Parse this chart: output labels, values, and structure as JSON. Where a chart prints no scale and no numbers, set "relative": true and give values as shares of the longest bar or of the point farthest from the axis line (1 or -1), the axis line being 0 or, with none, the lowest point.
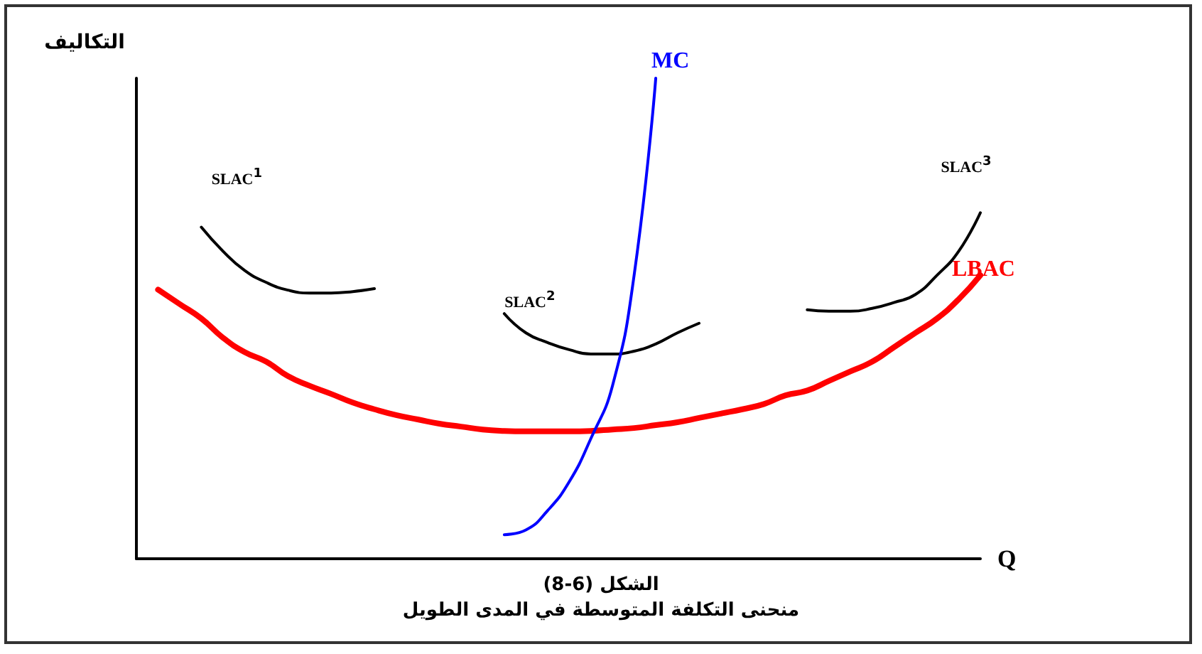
{
  "chart_data": {
    "type": "line",
    "relative": true,
    "ylabel": "التكاليف",
    "xlabel": "Q",
    "legend": false,
    "grid": false,
    "marker": "none",
    "annotations": [
      "الشكل (6-8)",
      "منحنى التكلفة المتوسطة في المدى الطويل"
    ],
    "categories": [
      null,
      null,
      null,
      null,
      null,
      null,
      null,
      null,
      null,
      null,
      null,
      null,
      null,
      null,
      null,
      null,
      null,
      null,
      null,
      null,
      null,
      null,
      null,
      null,
      null,
      null,
      null,
      null,
      null,
      null,
      null,
      null,
      null,
      null,
      null,
      null,
      null,
      null,
      null,
      null
    ],
    "series": [
      {
        "name": "SLAC$^{1}$",
        "color": "#000000",
        "values": [
          null,
          null,
          null,
          0.69,
          0.64,
          0.6,
          0.575,
          0.559,
          0.553,
          0.553,
          0.556,
          0.562,
          null,
          null,
          null,
          null,
          null,
          null,
          null,
          null,
          null,
          null,
          null,
          null,
          null,
          null,
          null,
          null,
          null,
          null,
          null,
          null,
          null,
          null,
          null,
          null,
          null,
          null,
          null,
          null
        ]
      },
      {
        "name": "SLAC$^{2}$",
        "color": "#000000",
        "values": [
          null,
          null,
          null,
          null,
          null,
          null,
          null,
          null,
          null,
          null,
          null,
          null,
          null,
          null,
          null,
          null,
          null,
          0.51,
          0.47,
          0.45,
          0.435,
          0.426,
          0.426,
          0.432,
          0.447,
          0.47,
          0.49,
          null,
          null,
          null,
          null,
          null,
          null,
          null,
          null,
          null,
          null,
          null,
          null,
          null
        ]
      },
      {
        "name": "SLAC$^{3}$",
        "color": "#000000",
        "values": [
          null,
          null,
          null,
          null,
          null,
          null,
          null,
          null,
          null,
          null,
          null,
          null,
          null,
          null,
          null,
          null,
          null,
          null,
          null,
          null,
          null,
          null,
          null,
          null,
          null,
          null,
          null,
          null,
          null,
          null,
          null,
          0.518,
          0.515,
          0.515,
          0.521,
          0.533,
          0.55,
          0.59,
          0.64,
          0.72
        ]
      },
      {
        "name": "LBAC",
        "color": "#ff0000",
        "values": [
          null,
          0.56,
          0.53,
          0.5,
          0.46,
          0.43,
          0.41,
          0.38,
          0.36,
          0.343,
          0.325,
          0.311,
          0.299,
          0.29,
          0.281,
          0.275,
          0.269,
          0.266,
          0.265,
          0.265,
          0.265,
          0.266,
          0.269,
          0.272,
          0.278,
          0.284,
          0.293,
          0.302,
          0.311,
          0.322,
          0.34,
          0.35,
          0.37,
          0.39,
          0.41,
          0.44,
          0.47,
          0.5,
          0.54,
          0.59
        ]
      },
      {
        "name": "MC",
        "color": "#0000ff",
        "values": [
          null,
          null,
          null,
          null,
          null,
          null,
          null,
          null,
          null,
          null,
          null,
          null,
          null,
          null,
          null,
          null,
          null,
          0.05,
          0.06,
          0.1,
          0.16,
          0.25,
          0.36,
          0.59,
          1,
          null,
          null,
          null,
          null,
          null,
          null,
          null,
          null,
          null,
          null,
          null,
          null,
          null,
          null,
          null
        ]
      }
    ]
  }
}
